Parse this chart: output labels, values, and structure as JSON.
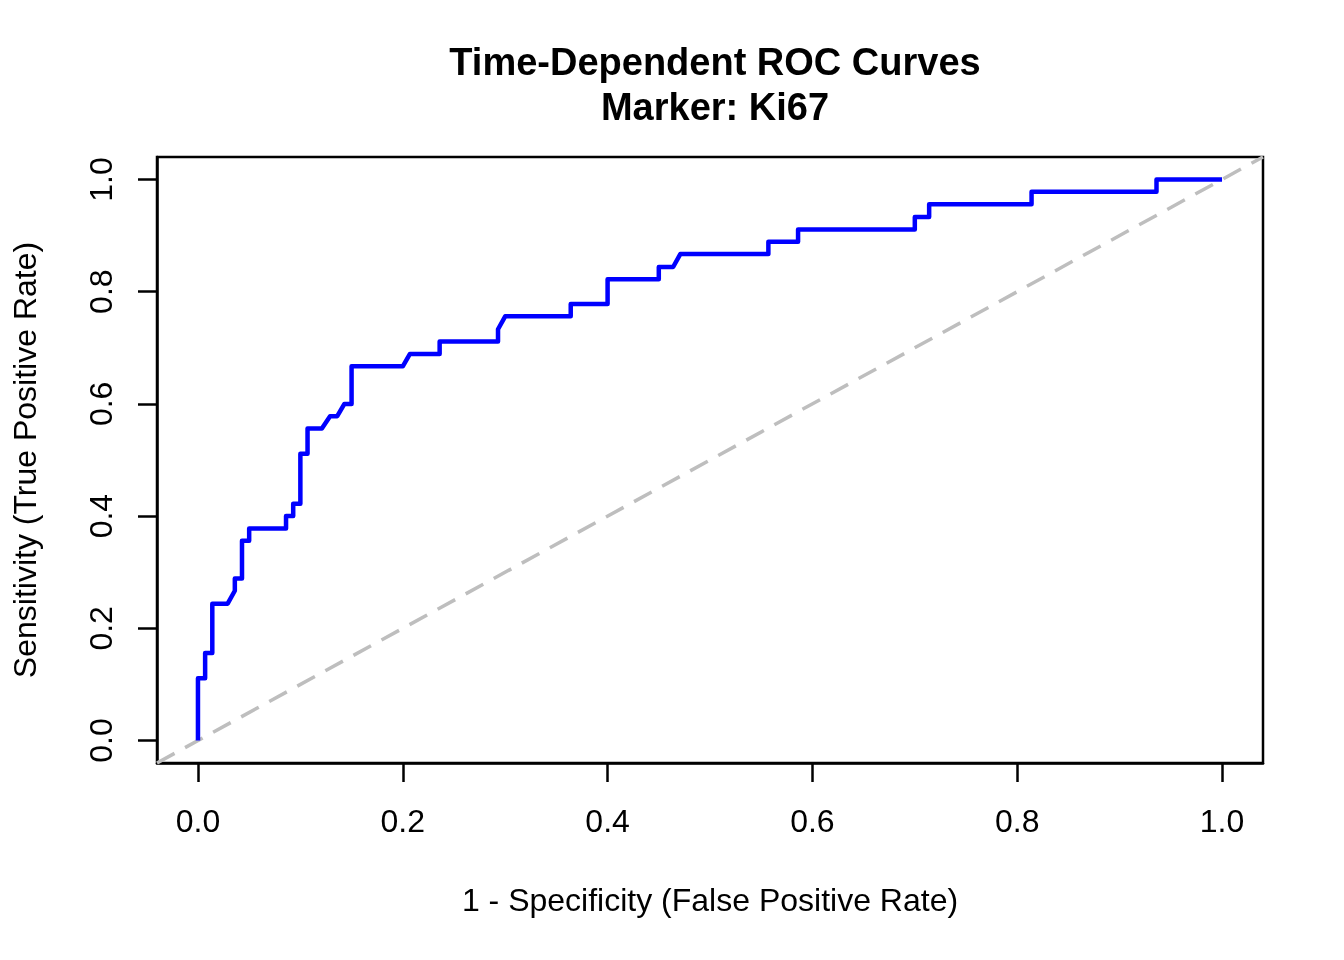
{
  "chart_data": {
    "type": "line",
    "title": "Time-Dependent ROC Curves",
    "subtitle": "Marker: Ki67",
    "xlabel": "1 - Specificity (False Positive Rate)",
    "ylabel": "Sensitivity (True Positive Rate)",
    "xlim": [
      -0.04,
      1.04
    ],
    "ylim": [
      -0.04,
      1.04
    ],
    "xticks": [
      {
        "value": 0,
        "label": "0.0"
      },
      0.2,
      0.4,
      0.6,
      0.8,
      {
        "value": 1,
        "label": "1.0"
      }
    ],
    "yticks": [
      {
        "value": 0,
        "label": "0.0"
      },
      0.2,
      0.4,
      0.6,
      0.8,
      {
        "value": 1,
        "label": "1.0"
      }
    ],
    "marker": "none",
    "series": [
      {
        "color": "#bebebe",
        "line_style": "dashed",
        "x": [
          -0.04,
          1.04
        ],
        "values": [
          -0.04,
          1.04
        ]
      },
      {
        "color": "#0000ff",
        "line_style": "solid",
        "x": [
          0,
          0,
          0.007,
          0.007,
          0.014,
          0.014,
          0.029,
          0.036,
          0.036,
          0.043,
          0.043,
          0.05,
          0.05,
          0.086,
          0.086,
          0.093,
          0.093,
          0.1,
          0.1,
          0.107,
          0.107,
          0.121,
          0.129,
          0.136,
          0.143,
          0.15,
          0.15,
          0.2,
          0.207,
          0.236,
          0.236,
          0.293,
          0.293,
          0.3,
          0.364,
          0.364,
          0.4,
          0.4,
          0.45,
          0.45,
          0.464,
          0.471,
          0.557,
          0.557,
          0.586,
          0.586,
          0.7,
          0.7,
          0.714,
          0.714,
          0.814,
          0.814,
          0.936,
          0.936,
          1
        ],
        "values": [
          0,
          0.111,
          0.111,
          0.156,
          0.156,
          0.244,
          0.244,
          0.267,
          0.289,
          0.289,
          0.356,
          0.356,
          0.378,
          0.378,
          0.4,
          0.4,
          0.422,
          0.422,
          0.511,
          0.511,
          0.556,
          0.556,
          0.578,
          0.578,
          0.6,
          0.6,
          0.667,
          0.667,
          0.689,
          0.689,
          0.711,
          0.711,
          0.733,
          0.756,
          0.756,
          0.778,
          0.778,
          0.822,
          0.822,
          0.844,
          0.844,
          0.867,
          0.867,
          0.889,
          0.889,
          0.911,
          0.911,
          0.933,
          0.933,
          0.956,
          0.956,
          0.978,
          0.978,
          1,
          1
        ]
      }
    ]
  }
}
